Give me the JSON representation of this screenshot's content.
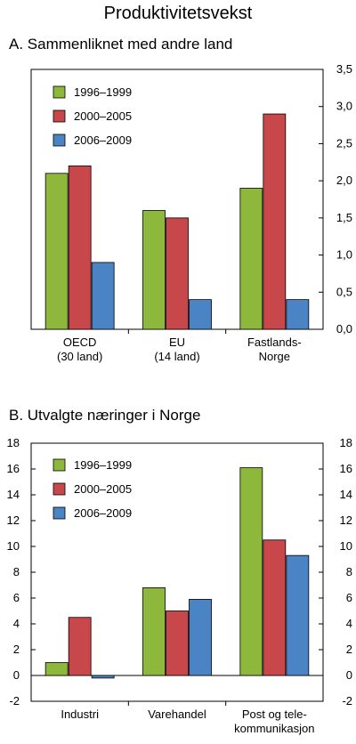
{
  "figure_title": "Produktivitetsvekst",
  "colors": {
    "s1": "#8DB83C",
    "s2": "#C8474B",
    "s3": "#4A84C5"
  },
  "chart_data": [
    {
      "type": "bar",
      "title": "A. Sammenliknet med andre land",
      "categories": [
        [
          "OECD",
          "(30 land)"
        ],
        [
          "EU",
          "(14 land)"
        ],
        [
          "Fastlands-",
          "Norge"
        ]
      ],
      "series": [
        {
          "name": "1996–1999",
          "values": [
            2.1,
            1.6,
            1.9
          ]
        },
        {
          "name": "2000–2005",
          "values": [
            2.2,
            1.5,
            2.9
          ]
        },
        {
          "name": "2006–2009",
          "values": [
            0.9,
            0.4,
            0.4
          ]
        }
      ],
      "ylim": [
        0,
        3.5
      ],
      "yticks": [
        "0,0",
        "0,5",
        "1,0",
        "1,5",
        "2,0",
        "2,5",
        "3,0",
        "3,5"
      ],
      "y_axis_side": "right",
      "legend_position": "top-left",
      "grid": false
    },
    {
      "type": "bar",
      "title": "B. Utvalgte næringer i Norge",
      "categories": [
        [
          "Industri"
        ],
        [
          "Varehandel"
        ],
        [
          "Post og tele-",
          "kommunikasjon"
        ]
      ],
      "series": [
        {
          "name": "1996–1999",
          "values": [
            1.0,
            6.8,
            16.1
          ]
        },
        {
          "name": "2000–2005",
          "values": [
            4.5,
            5.0,
            10.5
          ]
        },
        {
          "name": "2006–2009",
          "values": [
            -0.2,
            5.9,
            9.3
          ]
        }
      ],
      "ylim": [
        -2,
        18
      ],
      "yticks": [
        "-2",
        "0",
        "2",
        "4",
        "6",
        "8",
        "10",
        "12",
        "14",
        "16",
        "18"
      ],
      "y_axis_side": "both",
      "legend_position": "top-left",
      "grid": false
    }
  ]
}
